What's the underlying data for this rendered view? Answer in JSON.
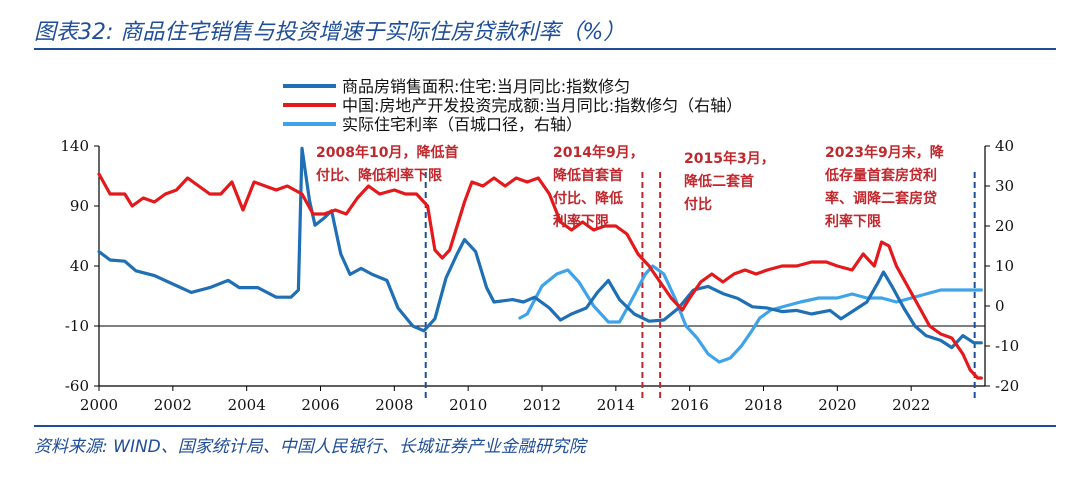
{
  "header": {
    "title": "图表32:  商品住宅销售与投资增速于实际住房贷款利率（%）"
  },
  "footer": {
    "source": "资料来源:  WIND、国家统计局、中国人民银行、长城证券产业金融研究院"
  },
  "colors": {
    "sales": "#1f6fb5",
    "investment": "#e3191c",
    "rate": "#3fa3ea",
    "event": "#1f4e99",
    "event_red": "#c0282e"
  },
  "chart_data": {
    "type": "line",
    "x_range": [
      2000,
      2024
    ],
    "left_axis": {
      "range": [
        -60,
        140
      ],
      "ticks": [
        "140",
        "90",
        "40",
        "-10",
        "-60"
      ]
    },
    "right_axis": {
      "range": [
        -20,
        40
      ],
      "ticks": [
        "40",
        "30",
        "20",
        "10",
        "0",
        "-10",
        "-20"
      ]
    },
    "x_ticks": [
      "2000",
      "2002",
      "2004",
      "2006",
      "2008",
      "2010",
      "2012",
      "2014",
      "2016",
      "2018",
      "2020",
      "2022"
    ],
    "series": [
      {
        "name": "商品房销售面积:住宅:当月同比:指数修匀",
        "axis": "left",
        "color_key": "sales",
        "points": [
          [
            2000,
            52
          ],
          [
            2000.3,
            45
          ],
          [
            2000.7,
            44
          ],
          [
            2001,
            36
          ],
          [
            2001.5,
            32
          ],
          [
            2002,
            25
          ],
          [
            2002.5,
            18
          ],
          [
            2003,
            22
          ],
          [
            2003.5,
            28
          ],
          [
            2003.8,
            22
          ],
          [
            2004.3,
            22
          ],
          [
            2004.8,
            14
          ],
          [
            2005.2,
            14
          ],
          [
            2005.4,
            20
          ],
          [
            2005.5,
            138
          ],
          [
            2005.7,
            95
          ],
          [
            2005.85,
            74
          ],
          [
            2006.1,
            80
          ],
          [
            2006.3,
            86
          ],
          [
            2006.55,
            50
          ],
          [
            2006.8,
            33
          ],
          [
            2007.1,
            38
          ],
          [
            2007.4,
            33
          ],
          [
            2007.8,
            28
          ],
          [
            2008.1,
            5
          ],
          [
            2008.5,
            -10
          ],
          [
            2008.8,
            -14
          ],
          [
            2009.1,
            -4
          ],
          [
            2009.4,
            30
          ],
          [
            2009.7,
            50
          ],
          [
            2009.9,
            62
          ],
          [
            2010.2,
            52
          ],
          [
            2010.5,
            22
          ],
          [
            2010.7,
            10
          ],
          [
            2011.2,
            12
          ],
          [
            2011.5,
            10
          ],
          [
            2011.8,
            14
          ],
          [
            2012.2,
            5
          ],
          [
            2012.5,
            -5
          ],
          [
            2012.8,
            0
          ],
          [
            2013.2,
            5
          ],
          [
            2013.5,
            18
          ],
          [
            2013.8,
            28
          ],
          [
            2014.1,
            12
          ],
          [
            2014.5,
            0
          ],
          [
            2014.9,
            -6
          ],
          [
            2015.3,
            -5
          ],
          [
            2015.7,
            5
          ],
          [
            2016.1,
            20
          ],
          [
            2016.5,
            23
          ],
          [
            2016.9,
            17
          ],
          [
            2017.3,
            13
          ],
          [
            2017.7,
            6
          ],
          [
            2018.1,
            5
          ],
          [
            2018.5,
            2
          ],
          [
            2018.9,
            3
          ],
          [
            2019.3,
            0
          ],
          [
            2019.8,
            3
          ],
          [
            2020.1,
            -4
          ],
          [
            2020.4,
            2
          ],
          [
            2020.8,
            10
          ],
          [
            2021.1,
            26
          ],
          [
            2021.25,
            35
          ],
          [
            2021.5,
            22
          ],
          [
            2021.8,
            5
          ],
          [
            2022.1,
            -10
          ],
          [
            2022.4,
            -18
          ],
          [
            2022.8,
            -22
          ],
          [
            2023.1,
            -28
          ],
          [
            2023.4,
            -18
          ],
          [
            2023.7,
            -24
          ],
          [
            2023.9,
            -24
          ]
        ]
      },
      {
        "name": "中国:房地产开发投资完成额:当月同比:指数修匀（右轴）",
        "axis": "right",
        "color_key": "investment",
        "points": [
          [
            2000,
            33
          ],
          [
            2000.3,
            28
          ],
          [
            2000.7,
            28
          ],
          [
            2000.9,
            25
          ],
          [
            2001.2,
            27
          ],
          [
            2001.5,
            26
          ],
          [
            2001.8,
            28
          ],
          [
            2002.1,
            29
          ],
          [
            2002.4,
            32
          ],
          [
            2002.7,
            30
          ],
          [
            2003,
            28
          ],
          [
            2003.3,
            28
          ],
          [
            2003.6,
            31
          ],
          [
            2003.9,
            24
          ],
          [
            2004.2,
            31
          ],
          [
            2004.5,
            30
          ],
          [
            2004.8,
            29
          ],
          [
            2005.1,
            30
          ],
          [
            2005.5,
            28
          ],
          [
            2005.8,
            23
          ],
          [
            2006.1,
            23
          ],
          [
            2006.4,
            24
          ],
          [
            2006.7,
            23
          ],
          [
            2007,
            27
          ],
          [
            2007.3,
            30
          ],
          [
            2007.6,
            28
          ],
          [
            2008,
            29
          ],
          [
            2008.3,
            28
          ],
          [
            2008.6,
            28
          ],
          [
            2008.9,
            25
          ],
          [
            2009.1,
            14
          ],
          [
            2009.3,
            12
          ],
          [
            2009.5,
            14
          ],
          [
            2009.7,
            20
          ],
          [
            2009.9,
            26
          ],
          [
            2010.1,
            31
          ],
          [
            2010.4,
            30
          ],
          [
            2010.7,
            32
          ],
          [
            2011,
            30
          ],
          [
            2011.3,
            32
          ],
          [
            2011.6,
            31
          ],
          [
            2011.9,
            32
          ],
          [
            2012.2,
            28
          ],
          [
            2012.5,
            21
          ],
          [
            2012.8,
            19
          ],
          [
            2013.1,
            21
          ],
          [
            2013.4,
            19
          ],
          [
            2013.7,
            20
          ],
          [
            2014,
            20
          ],
          [
            2014.3,
            18
          ],
          [
            2014.6,
            13
          ],
          [
            2014.9,
            10
          ],
          [
            2015.2,
            6
          ],
          [
            2015.5,
            2
          ],
          [
            2015.8,
            -1
          ],
          [
            2016,
            2
          ],
          [
            2016.3,
            6
          ],
          [
            2016.6,
            8
          ],
          [
            2016.9,
            6
          ],
          [
            2017.2,
            8
          ],
          [
            2017.5,
            9
          ],
          [
            2017.8,
            8
          ],
          [
            2018.1,
            9
          ],
          [
            2018.5,
            10
          ],
          [
            2018.9,
            10
          ],
          [
            2019.3,
            11
          ],
          [
            2019.7,
            11
          ],
          [
            2020,
            10
          ],
          [
            2020.4,
            9
          ],
          [
            2020.7,
            13
          ],
          [
            2021,
            10
          ],
          [
            2021.2,
            16
          ],
          [
            2021.4,
            15
          ],
          [
            2021.6,
            10
          ],
          [
            2021.9,
            5
          ],
          [
            2022.2,
            0
          ],
          [
            2022.5,
            -5
          ],
          [
            2022.8,
            -7
          ],
          [
            2023.1,
            -8
          ],
          [
            2023.4,
            -12
          ],
          [
            2023.6,
            -16
          ],
          [
            2023.8,
            -18
          ],
          [
            2023.9,
            -18
          ]
        ]
      },
      {
        "name": "实际住宅利率（百城口径，右轴）",
        "axis": "right",
        "color_key": "rate",
        "points": [
          [
            2011.4,
            -3
          ],
          [
            2011.6,
            -2
          ],
          [
            2012,
            5
          ],
          [
            2012.4,
            8
          ],
          [
            2012.7,
            9
          ],
          [
            2013,
            6
          ],
          [
            2013.4,
            0
          ],
          [
            2013.8,
            -4
          ],
          [
            2014.1,
            -4
          ],
          [
            2014.4,
            1
          ],
          [
            2014.8,
            8
          ],
          [
            2015,
            10
          ],
          [
            2015.3,
            8
          ],
          [
            2015.6,
            2
          ],
          [
            2015.9,
            -5
          ],
          [
            2016.2,
            -8
          ],
          [
            2016.5,
            -12
          ],
          [
            2016.8,
            -14
          ],
          [
            2017.1,
            -13
          ],
          [
            2017.4,
            -10
          ],
          [
            2017.7,
            -6
          ],
          [
            2017.9,
            -3
          ],
          [
            2018.2,
            -1
          ],
          [
            2018.6,
            0
          ],
          [
            2019,
            1
          ],
          [
            2019.5,
            2
          ],
          [
            2020,
            2
          ],
          [
            2020.4,
            3
          ],
          [
            2020.8,
            2
          ],
          [
            2021.2,
            2
          ],
          [
            2021.6,
            1
          ],
          [
            2022,
            2
          ],
          [
            2022.4,
            3
          ],
          [
            2022.8,
            4
          ],
          [
            2023.3,
            4
          ],
          [
            2023.9,
            4
          ]
        ]
      }
    ],
    "event_lines": [
      {
        "x": 2008.85,
        "color_key": "event"
      },
      {
        "x": 2014.72,
        "color_key": "event_red"
      },
      {
        "x": 2015.2,
        "color_key": "event_red"
      },
      {
        "x": 2023.72,
        "color_key": "event"
      }
    ]
  },
  "legend": [
    {
      "label": "商品房销售面积:住宅:当月同比:指数修匀",
      "color_key": "sales"
    },
    {
      "label": "中国:房地产开发投资完成额:当月同比:指数修匀（右轴）",
      "color_key": "investment"
    },
    {
      "label": "实际住宅利率（百城口径，右轴）",
      "color_key": "rate"
    }
  ],
  "annotations": {
    "a2008": [
      "2008年10月，降低首",
      "付比、降低利率下限"
    ],
    "a2014": [
      "2014年9月，",
      "降低首套首",
      "付比、降低",
      "利率下限"
    ],
    "a2015": [
      "2015年3月，",
      "降低二套首",
      "付比"
    ],
    "a2023": [
      "2023年9月末，降",
      "低存量首套房贷利",
      "率、调降二套房贷",
      "利率下限"
    ]
  }
}
